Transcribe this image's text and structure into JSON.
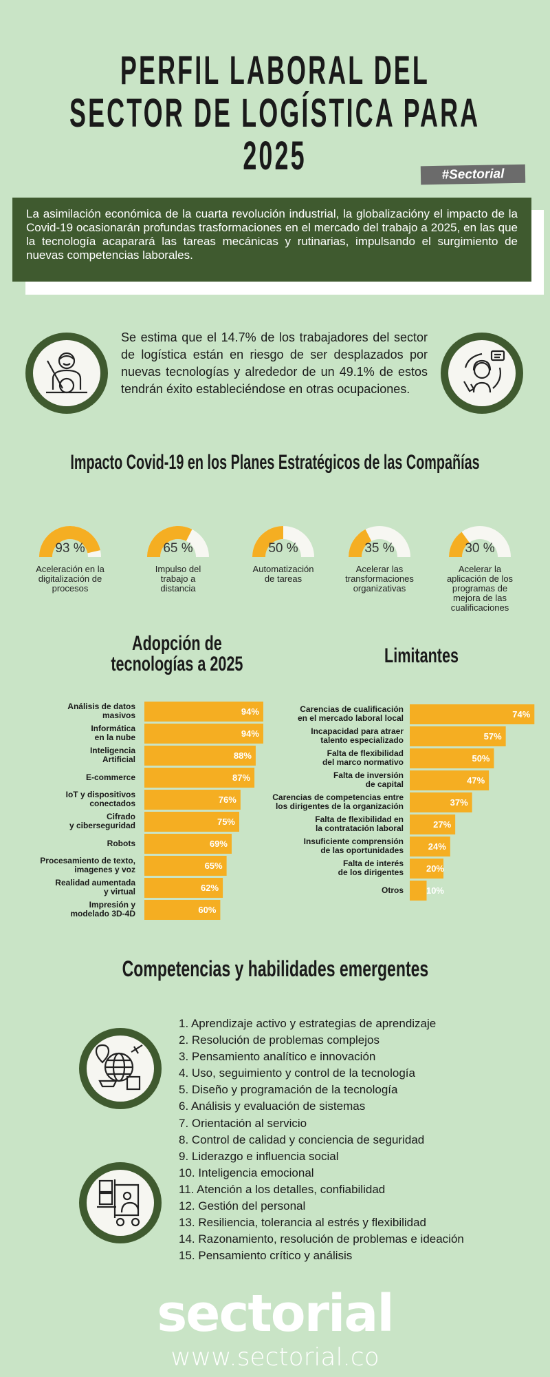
{
  "title_lines": [
    "PERFIL LABORAL DEL",
    "SECTOR DE LOGÍSTICA PARA",
    "2025"
  ],
  "badge": "#Sectorial",
  "intro": "La asimilación económica de la cuarta revolución industrial, la globalizacióny el impacto de la Covid-19 ocasionarán profundas trasformaciones en el mercado del trabajo a 2025, en las que la tecnología acaparará las tareas mecánicas y rutinarias, impulsando el surgimiento de nuevas competencias laborales.",
  "stat_text": "Se estima que el 14.7% de los trabajadores del sector de logística están en riesgo de ser desplazados por nuevas tecnologías y alrededor de un 49.1% de estos tendrán éxito estableciéndose en otras ocupaciones.",
  "icons": {
    "left": "driver-icon",
    "right": "call-center-agent-icon",
    "skills_1": "global-logistics-icon",
    "skills_2": "forklift-icon"
  },
  "colors": {
    "background": "#c9e4c6",
    "accent": "#f5ae22",
    "dark_green": "#3f5a2f",
    "track": "#f7f7f2"
  },
  "chart_data": [
    {
      "type": "gauge",
      "title": "Impacto Covid-19 en los Planes Estratégicos de las Compañías",
      "items": [
        {
          "value": 93,
          "label_text": "93 %",
          "label": "Aceleración en la\ndigitalización de\nprocesos"
        },
        {
          "value": 65,
          "label_text": "65 %",
          "label": "Impulso del\ntrabajo a\ndistancia"
        },
        {
          "value": 50,
          "label_text": "50 %",
          "label": "Automatización\nde tareas"
        },
        {
          "value": 35,
          "label_text": "35 %",
          "label": "Acelerar las\ntransformaciones\norganizativas"
        },
        {
          "value": 30,
          "label_text": "30 %",
          "label": "Acelerar la\naplicación de los\nprogramas de\nmejora de las\ncualificaciones"
        }
      ]
    },
    {
      "type": "bar",
      "orientation": "horizontal",
      "title": "Adopción de\ntecnologías a 2025",
      "categories": [
        "Análisis de datos\nmasivos",
        "Informática\nen la nube",
        "Inteligencia\nArtificial",
        "E-commerce",
        "IoT y dispositivos\nconectados",
        "Cifrado\ny ciberseguridad",
        "Robots",
        "Procesamiento de texto,\nimagenes y voz",
        "Realidad aumentada\ny virtual",
        "Impresión y\nmodelado 3D-4D"
      ],
      "values": [
        94,
        94,
        88,
        87,
        76,
        75,
        69,
        65,
        62,
        60
      ],
      "value_labels": [
        "94%",
        "94%",
        "88%",
        "87%",
        "76%",
        "75%",
        "69%",
        "65%",
        "62%",
        "60%"
      ]
    },
    {
      "type": "bar",
      "orientation": "horizontal",
      "title": "Limitantes",
      "categories": [
        "Carencias de cualificación\nen el mercado laboral local",
        "Incapacidad para atraer\ntalento especializado",
        "Falta de flexibilidad\ndel marco normativo",
        "Falta de inversión\nde capital",
        "Carencias de competencias entre\nlos dirigentes de la organización",
        "Falta de flexibilidad en\nla contratación laboral",
        "Insuficiente comprensión\nde las oportunidades",
        "Falta de interés\nde los dirigentes",
        "Otros"
      ],
      "values": [
        74,
        57,
        50,
        47,
        37,
        27,
        24,
        20,
        10
      ],
      "value_labels": [
        "74%",
        "57%",
        "50%",
        "47%",
        "37%",
        "27%",
        "24%",
        "20%",
        "10%"
      ]
    }
  ],
  "skills": {
    "title": "Competencias y habilidades emergentes",
    "items": [
      "1. Aprendizaje activo y estrategias de aprendizaje",
      "2. Resolución de problemas complejos",
      "3. Pensamiento analítico e innovación",
      "4. Uso, seguimiento y control de la tecnología",
      "5. Diseño y programación de la tecnología",
      "6. Análisis y evaluación de sistemas",
      "7. Orientación al servicio",
      "8. Control de calidad y conciencia de seguridad",
      "9. Liderazgo e influencia social",
      "10. Inteligencia emocional",
      "11. Atención a los detalles, confiabilidad",
      "12. Gestión del personal",
      "13. Resiliencia, tolerancia al estrés y flexibilidad",
      "14. Razonamiento, resolución de problemas e ideación",
      "15. Pensamiento crítico y análisis"
    ]
  },
  "footer": {
    "logo": "sectorial",
    "url": "www.sectorial.co"
  }
}
